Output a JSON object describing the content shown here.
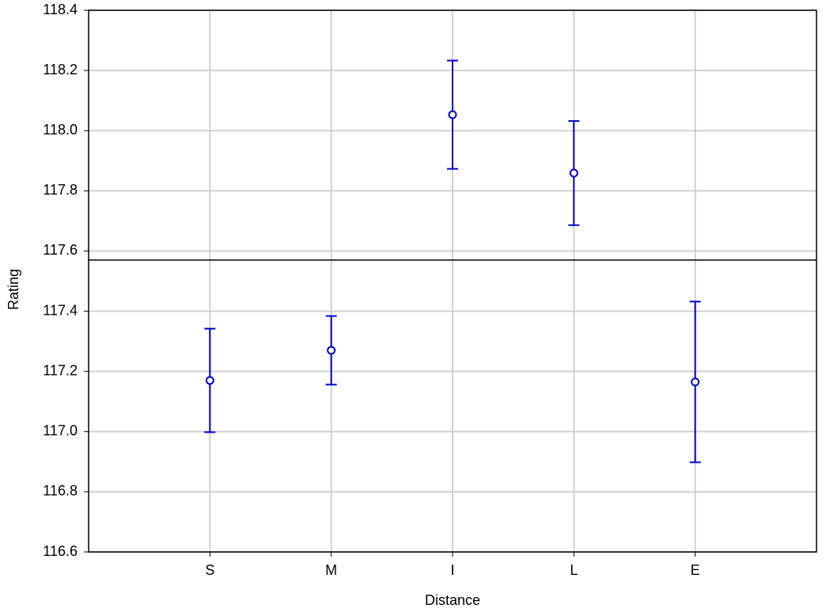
{
  "chart_data": {
    "type": "errorbar",
    "x_label": "Distance",
    "y_label": "Rating",
    "categories": [
      "S",
      "M",
      "I",
      "L",
      "E"
    ],
    "series": [
      {
        "name": "Rating",
        "color": "#0000cc",
        "values": [
          117.17,
          117.27,
          118.053,
          117.859,
          117.165
        ],
        "errors": [
          0.172,
          0.114,
          0.18,
          0.173,
          0.267
        ]
      }
    ],
    "reference_line": 117.57,
    "ylim": [
      116.6,
      118.4
    ],
    "yticks": [
      116.6,
      116.8,
      {
        "value": 117.0,
        "label": "117.0"
      },
      117.2,
      117.4,
      117.6,
      117.8,
      {
        "value": 118.0,
        "label": "118.0"
      },
      118.2,
      118.4
    ],
    "grid": true
  }
}
